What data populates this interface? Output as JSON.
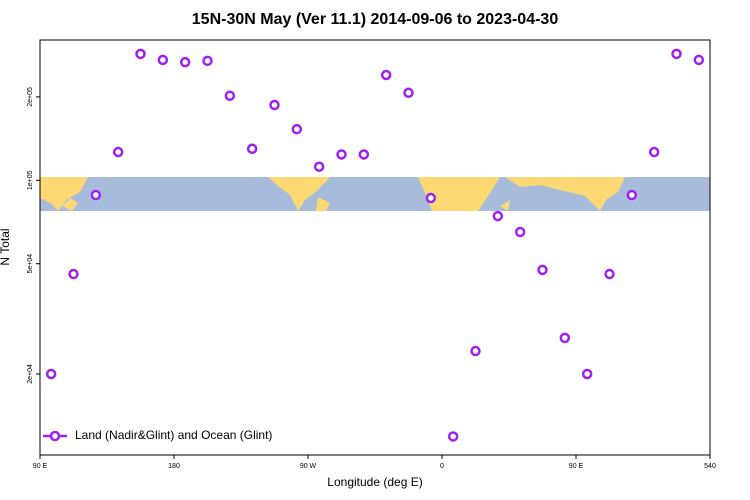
{
  "chart_data": {
    "type": "scatter",
    "title": "15N-30N May (Ver 11.1)   2014-09-06 to 2023-04-30",
    "xlabel": "Longitude (deg E)",
    "ylabel": "N Total",
    "xlim": [
      90,
      540
    ],
    "xticks": [
      {
        "value": 90,
        "label": "90 E"
      },
      180,
      {
        "value": 270,
        "label": "90 W"
      },
      {
        "value": 360,
        "label": "0"
      },
      {
        "value": 450,
        "label": "90 E"
      },
      540
    ],
    "ylim": [
      10200,
      321000
    ],
    "log_y": true,
    "yticks": [
      {
        "value": 20000,
        "label": "2e+04"
      },
      {
        "value": 50000,
        "label": "5e+04"
      },
      {
        "value": 100000,
        "label": "1e+05"
      },
      {
        "value": 200000,
        "label": "2e+05"
      }
    ],
    "legend": "bottom-left",
    "series": [
      {
        "name": "Land (Nadir&Glint) and Ocean (Glint)",
        "color": "#a020f0",
        "x": [
          97.5,
          112.5,
          127.5,
          142.5,
          157.5,
          172.5,
          187.5,
          202.5,
          217.5,
          232.5,
          247.5,
          262.5,
          277.5,
          292.5,
          307.5,
          322.5,
          337.5,
          352.5,
          367.5,
          382.5,
          397.5,
          412.5,
          427.5,
          442.5,
          457.5,
          472.5,
          487.5,
          502.5,
          517.5,
          532.5
        ],
        "values": [
          20000,
          45900,
          88500,
          126500,
          286000,
          272000,
          267000,
          270000,
          202000,
          130000,
          187000,
          153000,
          112000,
          124000,
          124000,
          240000,
          207000,
          86300,
          11900,
          24200,
          74300,
          65100,
          47500,
          27000,
          20000,
          45900,
          88500,
          126500,
          286000,
          272000
        ]
      }
    ]
  }
}
